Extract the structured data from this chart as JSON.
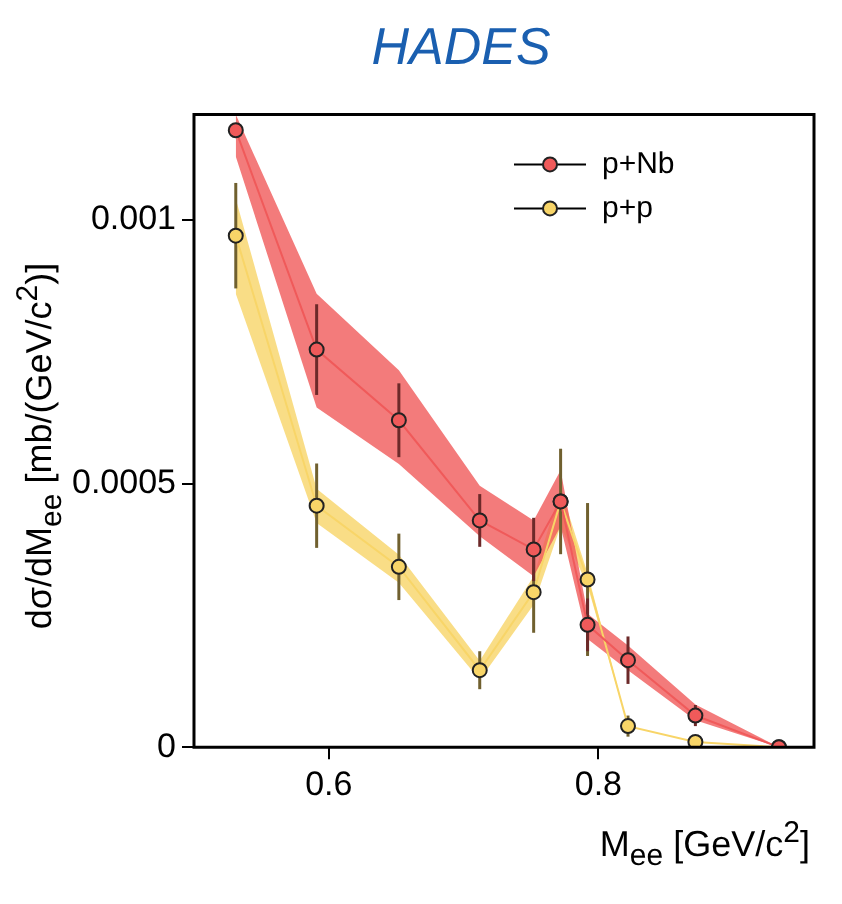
{
  "chart_data": {
    "title": "HADES",
    "xlabel": "M$_{ee}$ [GeV/c$^{2}$]",
    "ylabel": "dσ/dM$_{ee}$ [mb/(GeV/c$^{2}$)]",
    "xlim": [
      0.5,
      0.96
    ],
    "xticks": [
      0.6,
      0.8
    ],
    "ylim": [
      0,
      0.0012
    ],
    "yticks": [
      0,
      0.0005,
      0.001
    ],
    "grid": false,
    "legend": "top right",
    "marker": "circle",
    "type": "line",
    "series": [
      {
        "name": "p+Nb",
        "color": "#f05a5a",
        "x": [
          0.531,
          0.591,
          0.652,
          0.712,
          0.752,
          0.772,
          0.792,
          0.822,
          0.872,
          0.934
        ],
        "values": [
          0.00117,
          0.000754,
          0.00062,
          0.00043,
          0.000375,
          0.000466,
          0.000232,
          0.000165,
          6e-05,
          0
        ],
        "errors": [
          null,
          8.6e-05,
          7e-05,
          5e-05,
          6e-05,
          null,
          5e-05,
          4.5e-05,
          2e-05,
          null
        ],
        "lower": [
          0.00112,
          0.000644,
          0.000537,
          0.0004,
          0.000324,
          0.000419,
          0.000205,
          0.000146,
          5.1e-05,
          0
        ],
        "upper": [
          0.0012,
          0.00086,
          0.000715,
          0.000496,
          0.00043,
          0.000525,
          0.000253,
          0.000193,
          8.1e-05,
          0
        ]
      },
      {
        "name": "p+p",
        "color": "#f8d568",
        "x": [
          0.531,
          0.591,
          0.652,
          0.712,
          0.752,
          0.772,
          0.792,
          0.822,
          0.872,
          0.934
        ],
        "values": [
          0.00097,
          0.000458,
          0.000342,
          0.000146,
          0.000294,
          0.000466,
          0.000318,
          4e-05,
          1e-05,
          0
        ],
        "errors": [
          0.0001,
          8e-05,
          6.3e-05,
          3.6e-05,
          7.7e-05,
          0.0001,
          0.000145,
          2e-05,
          1e-05,
          null
        ],
        "lower": [
          0.00086,
          0.000425,
          0.000312,
          0.000128,
          0.00027,
          0.000419,
          0.000306,
          4e-05,
          1e-05,
          0
        ],
        "upper": [
          0.00104,
          0.00049,
          0.000365,
          0.000164,
          0.000324,
          0.00049,
          0.00033,
          4e-05,
          1e-05,
          0
        ]
      }
    ]
  }
}
